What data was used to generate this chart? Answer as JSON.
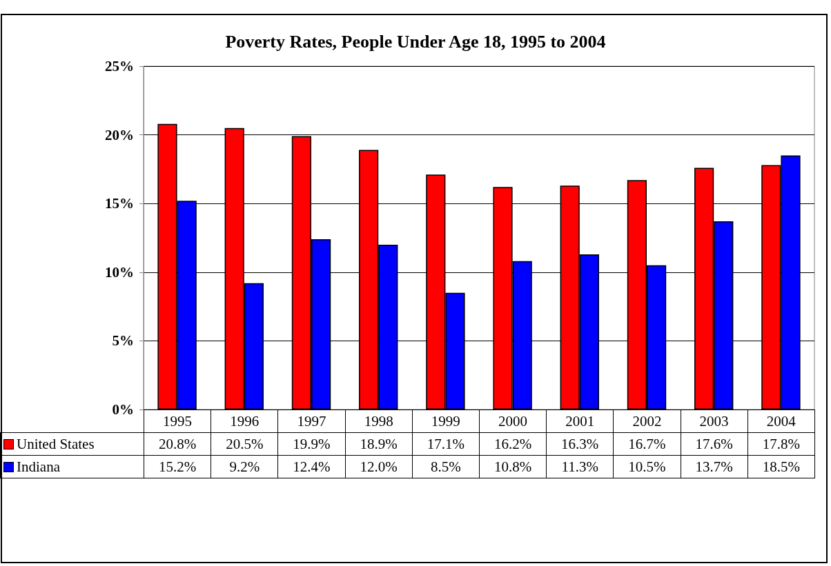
{
  "chart_data": {
    "type": "bar",
    "title": "Poverty Rates, People Under Age 18, 1995 to 2004",
    "categories": [
      "1995",
      "1996",
      "1997",
      "1998",
      "1999",
      "2000",
      "2001",
      "2002",
      "2003",
      "2004"
    ],
    "series": [
      {
        "name": "United States",
        "color": "#ff0000",
        "values": [
          20.8,
          20.5,
          19.9,
          18.9,
          17.1,
          16.2,
          16.3,
          16.7,
          17.6,
          17.8
        ],
        "value_labels": [
          "20.8%",
          "20.5%",
          "19.9%",
          "18.9%",
          "17.1%",
          "16.2%",
          "16.3%",
          "16.7%",
          "17.6%",
          "17.8%"
        ]
      },
      {
        "name": "Indiana",
        "color": "#0000ff",
        "values": [
          15.2,
          9.2,
          12.4,
          12.0,
          8.5,
          10.8,
          11.3,
          10.5,
          13.7,
          18.5
        ],
        "value_labels": [
          "15.2%",
          "9.2%",
          "12.4%",
          "12.0%",
          "8.5%",
          "10.8%",
          "11.3%",
          "10.5%",
          "13.7%",
          "18.5%"
        ]
      }
    ],
    "ylim": [
      0,
      25
    ],
    "yticks": [
      {
        "value": 0,
        "label": "0%"
      },
      {
        "value": 5,
        "label": "5%"
      },
      {
        "value": 10,
        "label": "10%"
      },
      {
        "value": 15,
        "label": "15%"
      },
      {
        "value": 20,
        "label": "20%"
      },
      {
        "value": 25,
        "label": "25%"
      }
    ],
    "grid": "y",
    "legend": "bottom left"
  }
}
